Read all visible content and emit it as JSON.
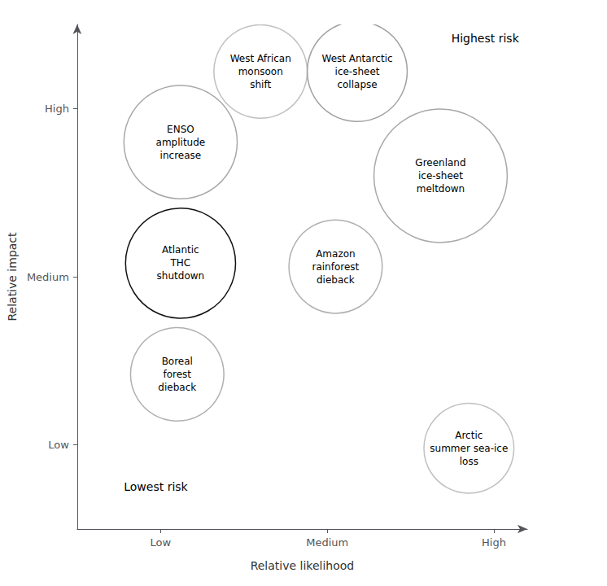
{
  "chart_data": {
    "type": "bubble",
    "xlabel": "Relative likelihood",
    "ylabel": "Relative impact",
    "labels": [
      "West African\nmonsoon\nshift",
      "West Antarctic\nice-sheet\ncollapse",
      "ENSO\namplitude\nincrease",
      "Greenland\nice-sheet\nmeltdown",
      "Atlantic\nTHC\nshutdown",
      "Amazon\nrainforest\ndieback",
      "Boreal\nforest\ndieback",
      "Arctic\nsummer sea-ice\nloss"
    ],
    "x": [
      1.6,
      2.18,
      1.12,
      2.68,
      1.12,
      2.05,
      1.1,
      2.85
    ],
    "values": [
      2.72,
      2.72,
      2.3,
      2.1,
      1.58,
      1.56,
      0.92,
      0.48
    ],
    "radius": [
      0.28,
      0.3,
      0.34,
      0.4,
      0.33,
      0.28,
      0.28,
      0.27
    ],
    "colors": [
      "#c0c0c0",
      "#a0a0a0",
      "#a8a8a8",
      "#a8a8a8",
      "#111111",
      "#b0b0b0",
      "#b0b0b0",
      "#c0c0c0"
    ],
    "xlim": [
      0.5,
      3.2
    ],
    "ylim": [
      0.0,
      3.0
    ],
    "xticks": [
      {
        "value": 1.0,
        "label": "Low"
      },
      {
        "value": 2.0,
        "label": "Medium"
      },
      {
        "value": 3.0,
        "label": "High"
      }
    ],
    "yticks": [
      {
        "value": 0.5,
        "label": "Low"
      },
      {
        "value": 1.5,
        "label": "Medium"
      },
      {
        "value": 2.5,
        "label": "High"
      }
    ],
    "annotations": [
      {
        "text": "Highest risk",
        "x": 3.15,
        "y": 2.95
      },
      {
        "text": "Lowest risk",
        "x": 0.78,
        "y": 0.22
      }
    ],
    "grid": false
  }
}
